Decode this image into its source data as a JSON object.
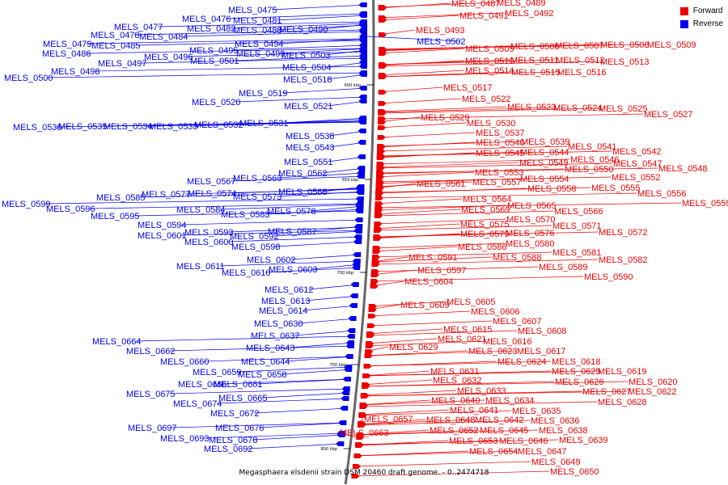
{
  "caption": "Megasphaera elsdenii strain DSM 20460 draft genome. - 0..2474718",
  "legend": [
    {
      "label": "Forward",
      "color": "#ee0000"
    },
    {
      "label": "Reverse",
      "color": "#0000ee"
    }
  ],
  "colors": {
    "forward": "#ee0000",
    "reverse": "#0000ee",
    "backbone": "#666666"
  },
  "ticks": [
    "600 kbp",
    "650 kbp",
    "700 kbp",
    "750 kbp",
    "800 kbp"
  ],
  "reverse_genes": [
    "MELS_0475",
    "MELS_0476",
    "MELS_0477",
    "MELS_0478",
    "MELS_0479",
    "MELS_0481",
    "MELS_0482",
    "MELS_0484",
    "MELS_0485",
    "MELS_0486",
    "MELS_0488",
    "MELS_0490",
    "MELS_0494",
    "MELS_0495",
    "MELS_0496",
    "MELS_0497",
    "MELS_0498",
    "MELS_0499",
    "MELS_0500",
    "MELS_0501",
    "MELS_0502",
    "MELS_0503",
    "MELS_0504",
    "MELS_0518",
    "MELS_0519",
    "MELS_0520",
    "MELS_0521",
    "MELS_0531",
    "MELS_0532",
    "MELS_0533",
    "MELS_0534",
    "MELS_0535",
    "MELS_0536",
    "MELS_0538",
    "MELS_0543",
    "MELS_0551",
    "MELS_0562",
    "MELS_0563",
    "MELS_0567",
    "MELS_0568",
    "MELS_0573",
    "MELS_0574",
    "MELS_0577",
    "MELS_0578",
    "MELS_0583",
    "MELS_0584",
    "MELS_0585",
    "MELS_0587",
    "MELS_0592",
    "MELS_0593",
    "MELS_0594",
    "MELS_0595",
    "MELS_0596",
    "MELS_0598",
    "MELS_0599",
    "MELS_0600",
    "MELS_0601",
    "MELS_0602",
    "MELS_0603",
    "MELS_0610",
    "MELS_0611",
    "MELS_0612",
    "MELS_0613",
    "MELS_0614",
    "MELS_0630",
    "MELS_0637",
    "MELS_0643",
    "MELS_0644",
    "MELS_0658",
    "MELS_0659",
    "MELS_0660",
    "MELS_0661",
    "MELS_0662",
    "MELS_0664",
    "MELS_0665",
    "MELS_0666",
    "MELS_0672",
    "MELS_0674",
    "MELS_0675",
    "MELS_0676",
    "MELS_0678",
    "MELS_0692",
    "MELS_0693",
    "MELS_0697"
  ],
  "forward_genes": [
    "MELS_0487",
    "MELS_0489",
    "MELS_0491",
    "MELS_0492",
    "MELS_0493",
    "MELS_0505",
    "MELS_0506",
    "MELS_0507",
    "MELS_0508",
    "MELS_0509",
    "MELS_0510",
    "MELS_0511",
    "MELS_0512",
    "MELS_0513",
    "MELS_0514",
    "MELS_0515",
    "MELS_0516",
    "MELS_0517",
    "MELS_0522",
    "MELS_0523",
    "MELS_0524",
    "MELS_0525",
    "MELS_0527",
    "MELS_0529",
    "MELS_0530",
    "MELS_0537",
    "MELS_0539",
    "MELS_0540",
    "MELS_0541",
    "MELS_0542",
    "MELS_0544",
    "MELS_0545",
    "MELS_0546",
    "MELS_0547",
    "MELS_0548",
    "MELS_0549",
    "MELS_0550",
    "MELS_0552",
    "MELS_0553",
    "MELS_0554",
    "MELS_0555",
    "MELS_0556",
    "MELS_0557",
    "MELS_0558",
    "MELS_0559",
    "MELS_0561",
    "MELS_0564",
    "MELS_0565",
    "MELS_0566",
    "MELS_0569",
    "MELS_0570",
    "MELS_0571",
    "MELS_0572",
    "MELS_0575",
    "MELS_0576",
    "MELS_0579",
    "MELS_0580",
    "MELS_0581",
    "MELS_0582",
    "MELS_0586",
    "MELS_0588",
    "MELS_0589",
    "MELS_0590",
    "MELS_0591",
    "MELS_0597",
    "MELS_0604",
    "MELS_0605",
    "MELS_0606",
    "MELS_0607",
    "MELS_0608",
    "MELS_0609",
    "MELS_0615",
    "MELS_0616",
    "MELS_0617",
    "MELS_0618",
    "MELS_0619",
    "MELS_0620",
    "MELS_0621",
    "MELS_0622",
    "MELS_0623",
    "MELS_0624",
    "MELS_0625",
    "MELS_0626",
    "MELS_0627",
    "MELS_0628",
    "MELS_0629",
    "MELS_0631",
    "MELS_0632",
    "MELS_0633",
    "MELS_0634",
    "MELS_0635",
    "MELS_0636",
    "MELS_0638",
    "MELS_0639",
    "MELS_0640",
    "MELS_0641",
    "MELS_0642",
    "MELS_0645",
    "MELS_0646",
    "MELS_0647",
    "MELS_0648",
    "MELS_0649",
    "MELS_0650",
    "MELS_0652",
    "MELS_0653",
    "MELS_0654",
    "MELS_0657",
    "MELS_0663"
  ]
}
